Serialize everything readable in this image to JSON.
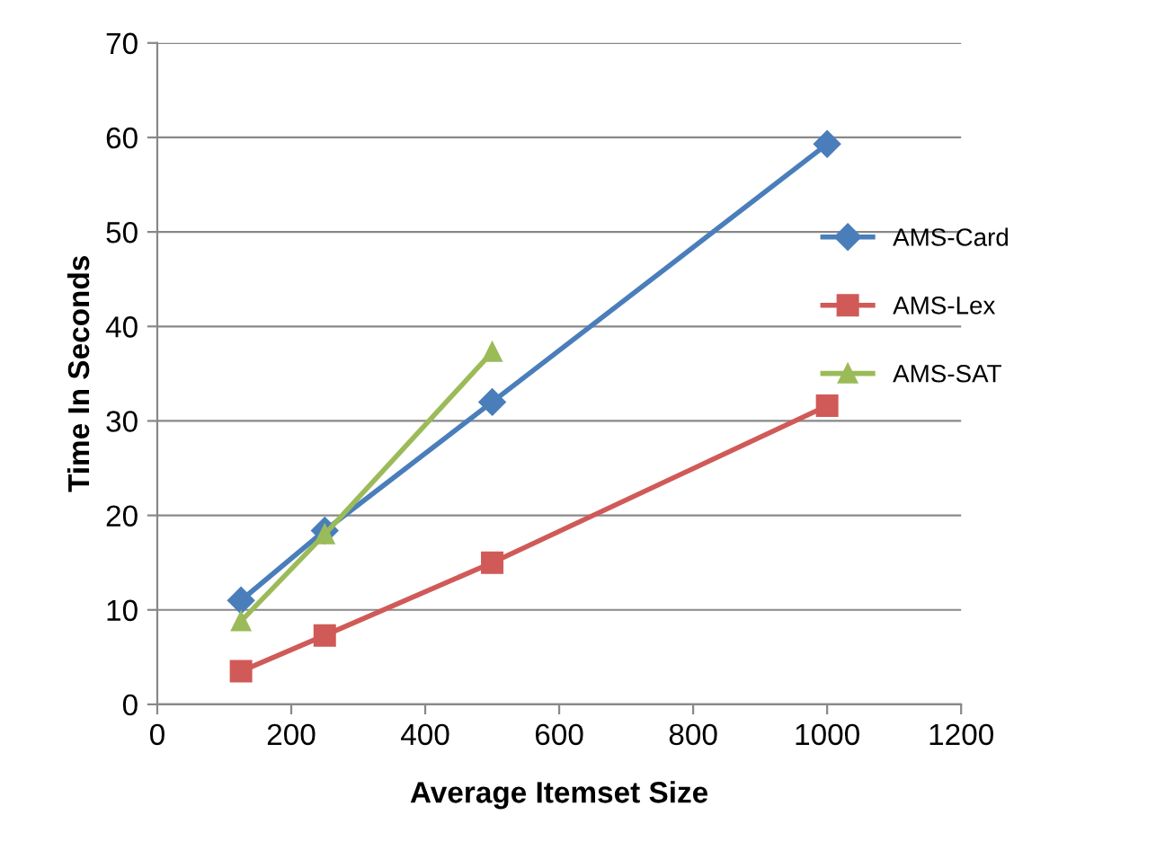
{
  "chart_data": {
    "type": "line",
    "xlabel": "Average Itemset Size",
    "ylabel": "Time In Seconds",
    "xlim": [
      0,
      1200
    ],
    "xticks": [
      0,
      200,
      400,
      600,
      800,
      1000,
      1200
    ],
    "ylim": [
      0,
      70
    ],
    "yticks": [
      0,
      10,
      20,
      30,
      40,
      50,
      60,
      70
    ],
    "grid": "y",
    "legend": "right",
    "series": [
      {
        "name": "AMS-Card",
        "color": "#4a7ebb",
        "marker": "diamond",
        "x": [
          125,
          250,
          500,
          1000
        ],
        "values": [
          11,
          18.4,
          32,
          59.3
        ]
      },
      {
        "name": "AMS-Lex",
        "color": "#d05a57",
        "marker": "square",
        "x": [
          125,
          250,
          500,
          1000
        ],
        "values": [
          3.5,
          7.3,
          15,
          31.6
        ]
      },
      {
        "name": "AMS-SAT",
        "color": "#9bbb59",
        "marker": "triangle",
        "x": [
          125,
          250,
          500
        ],
        "values": [
          8.8,
          18,
          37.3
        ]
      }
    ]
  }
}
